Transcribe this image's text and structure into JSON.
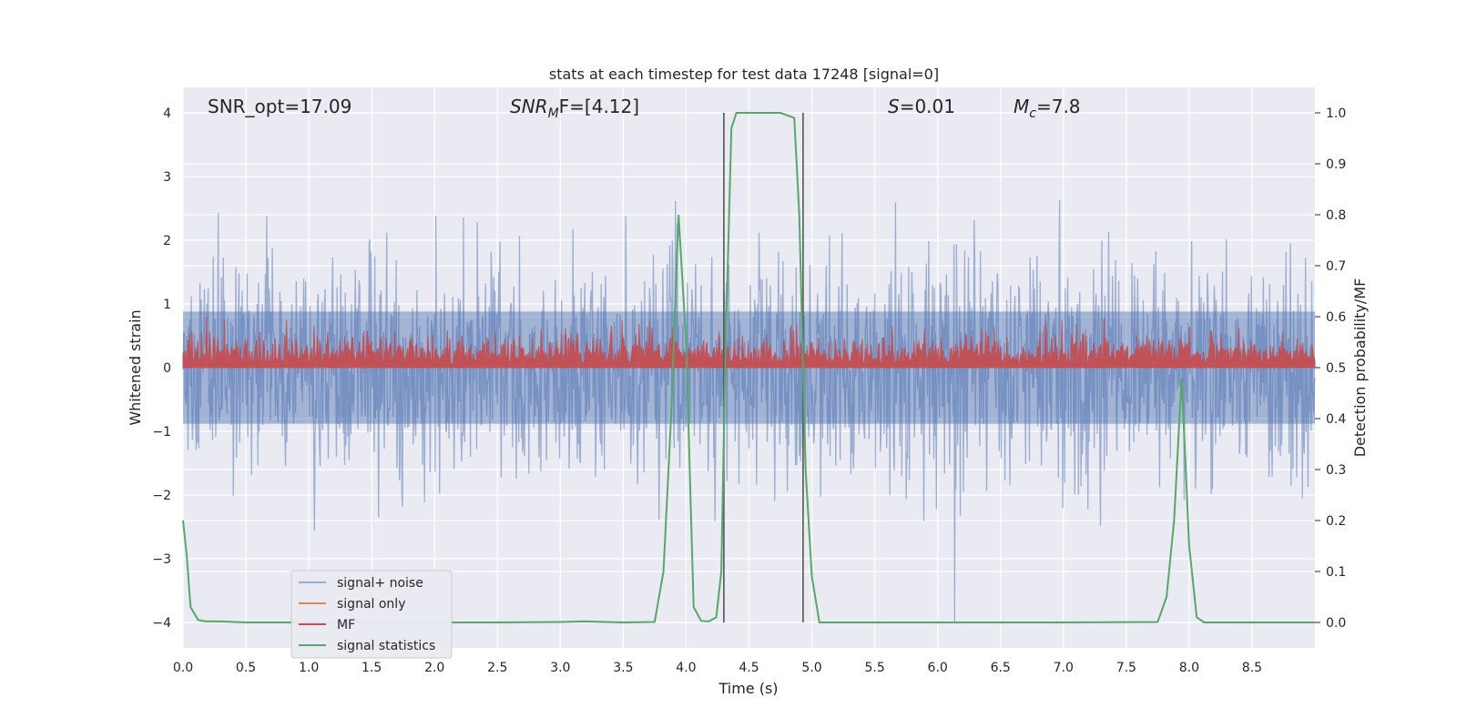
{
  "chart_data": {
    "type": "line",
    "title": "stats at each timestep for test data 17248 [signal=0]",
    "xlabel": "Time (s)",
    "ylabel_left": "Whitened strain",
    "ylabel_right": "Detection probability/MF",
    "xlim": [
      0.0,
      9.0
    ],
    "ylim_left": [
      -4.4,
      4.4
    ],
    "ylim_right": [
      -0.05,
      1.05
    ],
    "x_ticks": [
      0.0,
      0.5,
      1.0,
      1.5,
      2.0,
      2.5,
      3.0,
      3.5,
      4.0,
      4.5,
      5.0,
      5.5,
      6.0,
      6.5,
      7.0,
      7.5,
      8.0,
      8.5
    ],
    "x_tick_labels": [
      "0.0",
      "0.5",
      "1.0",
      "1.5",
      "2.0",
      "2.5",
      "3.0",
      "3.5",
      "4.0",
      "4.5",
      "5.0",
      "5.5",
      "6.0",
      "6.5",
      "7.0",
      "7.5",
      "8.0",
      "8.5"
    ],
    "y_left_ticks": [
      -4,
      -3,
      -2,
      -1,
      0,
      1,
      2,
      3,
      4
    ],
    "y_left_tick_labels": [
      "−4",
      "−3",
      "−2",
      "−1",
      "0",
      "1",
      "2",
      "3",
      "4"
    ],
    "y_right_ticks": [
      0.0,
      0.1,
      0.2,
      0.3,
      0.4,
      0.5,
      0.6,
      0.7,
      0.8,
      0.9,
      1.0
    ],
    "y_right_tick_labels": [
      "0.0",
      "0.1",
      "0.2",
      "0.3",
      "0.4",
      "0.5",
      "0.6",
      "0.7",
      "0.8",
      "0.9",
      "1.0"
    ],
    "grid": true,
    "legend_placement": "lower-left",
    "annotations": {
      "snr_opt": "SNR_opt=17.09",
      "snr_mf_base": "SNR",
      "snr_mf_sub": "M",
      "snr_mf_rest": "F=[4.12]",
      "s_base": "S",
      "s_rest": "=0.01",
      "mc_base": "M",
      "mc_sub": "c",
      "mc_rest": "=7.8"
    },
    "vertical_lines_x": [
      4.3,
      4.93
    ],
    "series": [
      {
        "name": "signal+ noise",
        "color": "#4c72b0",
        "opacity": 0.5,
        "axis": "left",
        "description_envelope": {
          "upper_typical": 1.6,
          "lower_typical": -1.6,
          "spike_max": 3.4,
          "spike_min": -4.0
        }
      },
      {
        "name": "signal only",
        "color": "#dd8452",
        "axis": "left"
      },
      {
        "name": "MF",
        "color": "#c44e52",
        "axis": "left",
        "description_envelope": {
          "lower": 0.0,
          "upper_typical": 0.55,
          "spike_max": 0.8
        }
      },
      {
        "name": "signal statistics",
        "color": "#55a868",
        "axis": "right",
        "x": [
          0.0,
          0.03,
          0.06,
          0.12,
          0.18,
          0.3,
          0.5,
          1.0,
          2.0,
          2.5,
          3.0,
          3.2,
          3.5,
          3.75,
          3.82,
          3.88,
          3.94,
          4.0,
          4.06,
          4.12,
          4.18,
          4.24,
          4.28,
          4.31,
          4.36,
          4.4,
          4.45,
          4.55,
          4.75,
          4.86,
          4.9,
          4.95,
          5.0,
          5.06,
          5.2,
          6.0,
          7.0,
          7.75,
          7.82,
          7.88,
          7.94,
          8.0,
          8.06,
          8.12,
          8.3,
          9.0
        ],
        "values": [
          0.2,
          0.13,
          0.03,
          0.005,
          0.002,
          0.002,
          0.0,
          0.0,
          0.0,
          0.0,
          0.001,
          0.002,
          0.0,
          0.001,
          0.1,
          0.4,
          0.8,
          0.55,
          0.03,
          0.003,
          0.002,
          0.01,
          0.1,
          0.5,
          0.97,
          1.0,
          1.0,
          1.0,
          1.0,
          0.99,
          0.8,
          0.3,
          0.09,
          0.0,
          0.0,
          0.0,
          0.0,
          0.001,
          0.05,
          0.2,
          0.48,
          0.15,
          0.01,
          0.0,
          0.0,
          0.0
        ]
      }
    ]
  }
}
